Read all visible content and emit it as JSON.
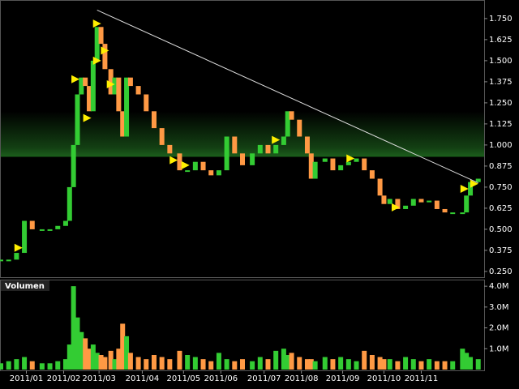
{
  "chart_data": [
    {
      "type": "candlestick",
      "x": [
        0,
        4,
        8,
        12,
        16,
        21,
        25,
        29,
        33,
        35,
        37,
        39,
        41,
        43,
        45,
        47,
        49,
        51,
        53,
        56,
        58,
        60,
        62,
        64,
        66,
        70,
        74,
        78,
        82,
        86,
        91,
        95,
        99,
        103,
        107,
        111,
        115,
        119,
        123,
        128,
        132,
        136,
        140,
        144,
        146,
        148,
        152,
        156,
        158,
        160,
        165,
        169,
        173,
        177,
        181,
        185,
        189,
        193,
        195,
        198,
        202,
        206,
        210,
        214,
        218,
        222,
        226,
        230,
        235,
        237,
        239,
        243
      ],
      "series": [
        {
          "up_color": "#33cc33",
          "down_color": "#ff9944",
          "values": [
            0.32,
            0.32,
            0.36,
            0.55,
            0.5,
            0.5,
            0.5,
            0.52,
            0.55,
            0.75,
            1.0,
            1.3,
            1.4,
            1.35,
            1.2,
            1.5,
            1.7,
            1.6,
            1.45,
            1.3,
            1.4,
            1.2,
            1.05,
            1.4,
            1.35,
            1.3,
            1.2,
            1.1,
            1.0,
            0.95,
            0.85,
            0.85,
            0.9,
            0.85,
            0.82,
            0.85,
            1.05,
            0.95,
            0.88,
            0.95,
            1.0,
            0.95,
            1.0,
            1.05,
            1.2,
            1.15,
            1.05,
            0.95,
            0.8,
            0.9,
            0.92,
            0.85,
            0.88,
            0.9,
            0.92,
            0.85,
            0.8,
            0.7,
            0.65,
            0.68,
            0.62,
            0.64,
            0.68,
            0.66,
            0.67,
            0.62,
            0.6,
            0.6,
            0.6,
            0.7,
            0.78,
            0.8
          ]
        }
      ],
      "xlim": [
        0,
        246
      ],
      "xticks": [
        {
          "value": 13,
          "label": "2011/01"
        },
        {
          "value": 32,
          "label": "2011/02"
        },
        {
          "value": 50,
          "label": "2011/03"
        },
        {
          "value": 72,
          "label": "2011/04"
        },
        {
          "value": 93,
          "label": "2011/05"
        },
        {
          "value": 112,
          "label": "2011/06"
        },
        {
          "value": 134,
          "label": "2011/07"
        },
        {
          "value": 153,
          "label": "2011/08"
        },
        {
          "value": 174,
          "label": "2011/09"
        },
        {
          "value": 195,
          "label": "2011/10"
        },
        {
          "value": 214,
          "label": "2011/11"
        }
      ],
      "ylim": [
        0.216,
        1.86
      ],
      "yticks": [
        {
          "value": 0.25,
          "label": "0.250"
        },
        {
          "value": 0.375,
          "label": "0.375"
        },
        {
          "value": 0.5,
          "label": "0.500"
        },
        {
          "value": 0.625,
          "label": "0.625"
        },
        {
          "value": 0.75,
          "label": "0.750"
        },
        {
          "value": 0.875,
          "label": "0.875"
        },
        {
          "value": 1.0,
          "label": "1.000"
        },
        {
          "value": 1.125,
          "label": "1.125"
        },
        {
          "value": 1.25,
          "label": "1.250"
        },
        {
          "value": 1.375,
          "label": "1.375"
        },
        {
          "value": 1.5,
          "label": "1.500"
        },
        {
          "value": 1.625,
          "label": "1.625"
        },
        {
          "value": 1.75,
          "label": "1.750"
        }
      ],
      "highlight_band": {
        "range": [
          0.93,
          1.2
        ],
        "color": "#1f6a1f"
      },
      "trendline": {
        "x": [
          49,
          243
        ],
        "y": [
          1.8,
          0.775
        ],
        "color": "#dddddd"
      },
      "signals": {
        "color": "#ffee00",
        "x": [
          9,
          38,
          49,
          49,
          53,
          56,
          44,
          88,
          94,
          140,
          178,
          201,
          236,
          241
        ],
        "y": [
          0.39,
          1.39,
          1.5,
          1.72,
          1.56,
          1.36,
          1.16,
          0.91,
          0.88,
          1.03,
          0.92,
          0.63,
          0.74,
          0.77
        ]
      }
    },
    {
      "type": "bar",
      "label": "Volumen",
      "values": [
        300000,
        400000,
        500000,
        600000,
        400000,
        300000,
        300000,
        400000,
        500000,
        1200000,
        4000000,
        2500000,
        1800000,
        1500000,
        1000000,
        1200000,
        800000,
        700000,
        600000,
        900000,
        500000,
        1000000,
        2200000,
        1600000,
        800000,
        600000,
        500000,
        700000,
        600000,
        500000,
        900000,
        700000,
        600000,
        500000,
        400000,
        800000,
        500000,
        400000,
        500000,
        400000,
        600000,
        500000,
        900000,
        1000000,
        700000,
        800000,
        600000,
        500000,
        500000,
        400000,
        600000,
        500000,
        600000,
        500000,
        400000,
        900000,
        700000,
        600000,
        500000,
        500000,
        400000,
        600000,
        500000,
        400000,
        500000,
        400000,
        400000,
        400000,
        1000000,
        800000,
        600000,
        500000
      ],
      "ylim": [
        0,
        4200000
      ],
      "yticks": [
        {
          "value": 1000000,
          "label": "1.0M"
        },
        {
          "value": 2000000,
          "label": "2.0M"
        },
        {
          "value": 3000000,
          "label": "3.0M"
        },
        {
          "value": 4000000,
          "label": "4.0M"
        }
      ]
    }
  ]
}
